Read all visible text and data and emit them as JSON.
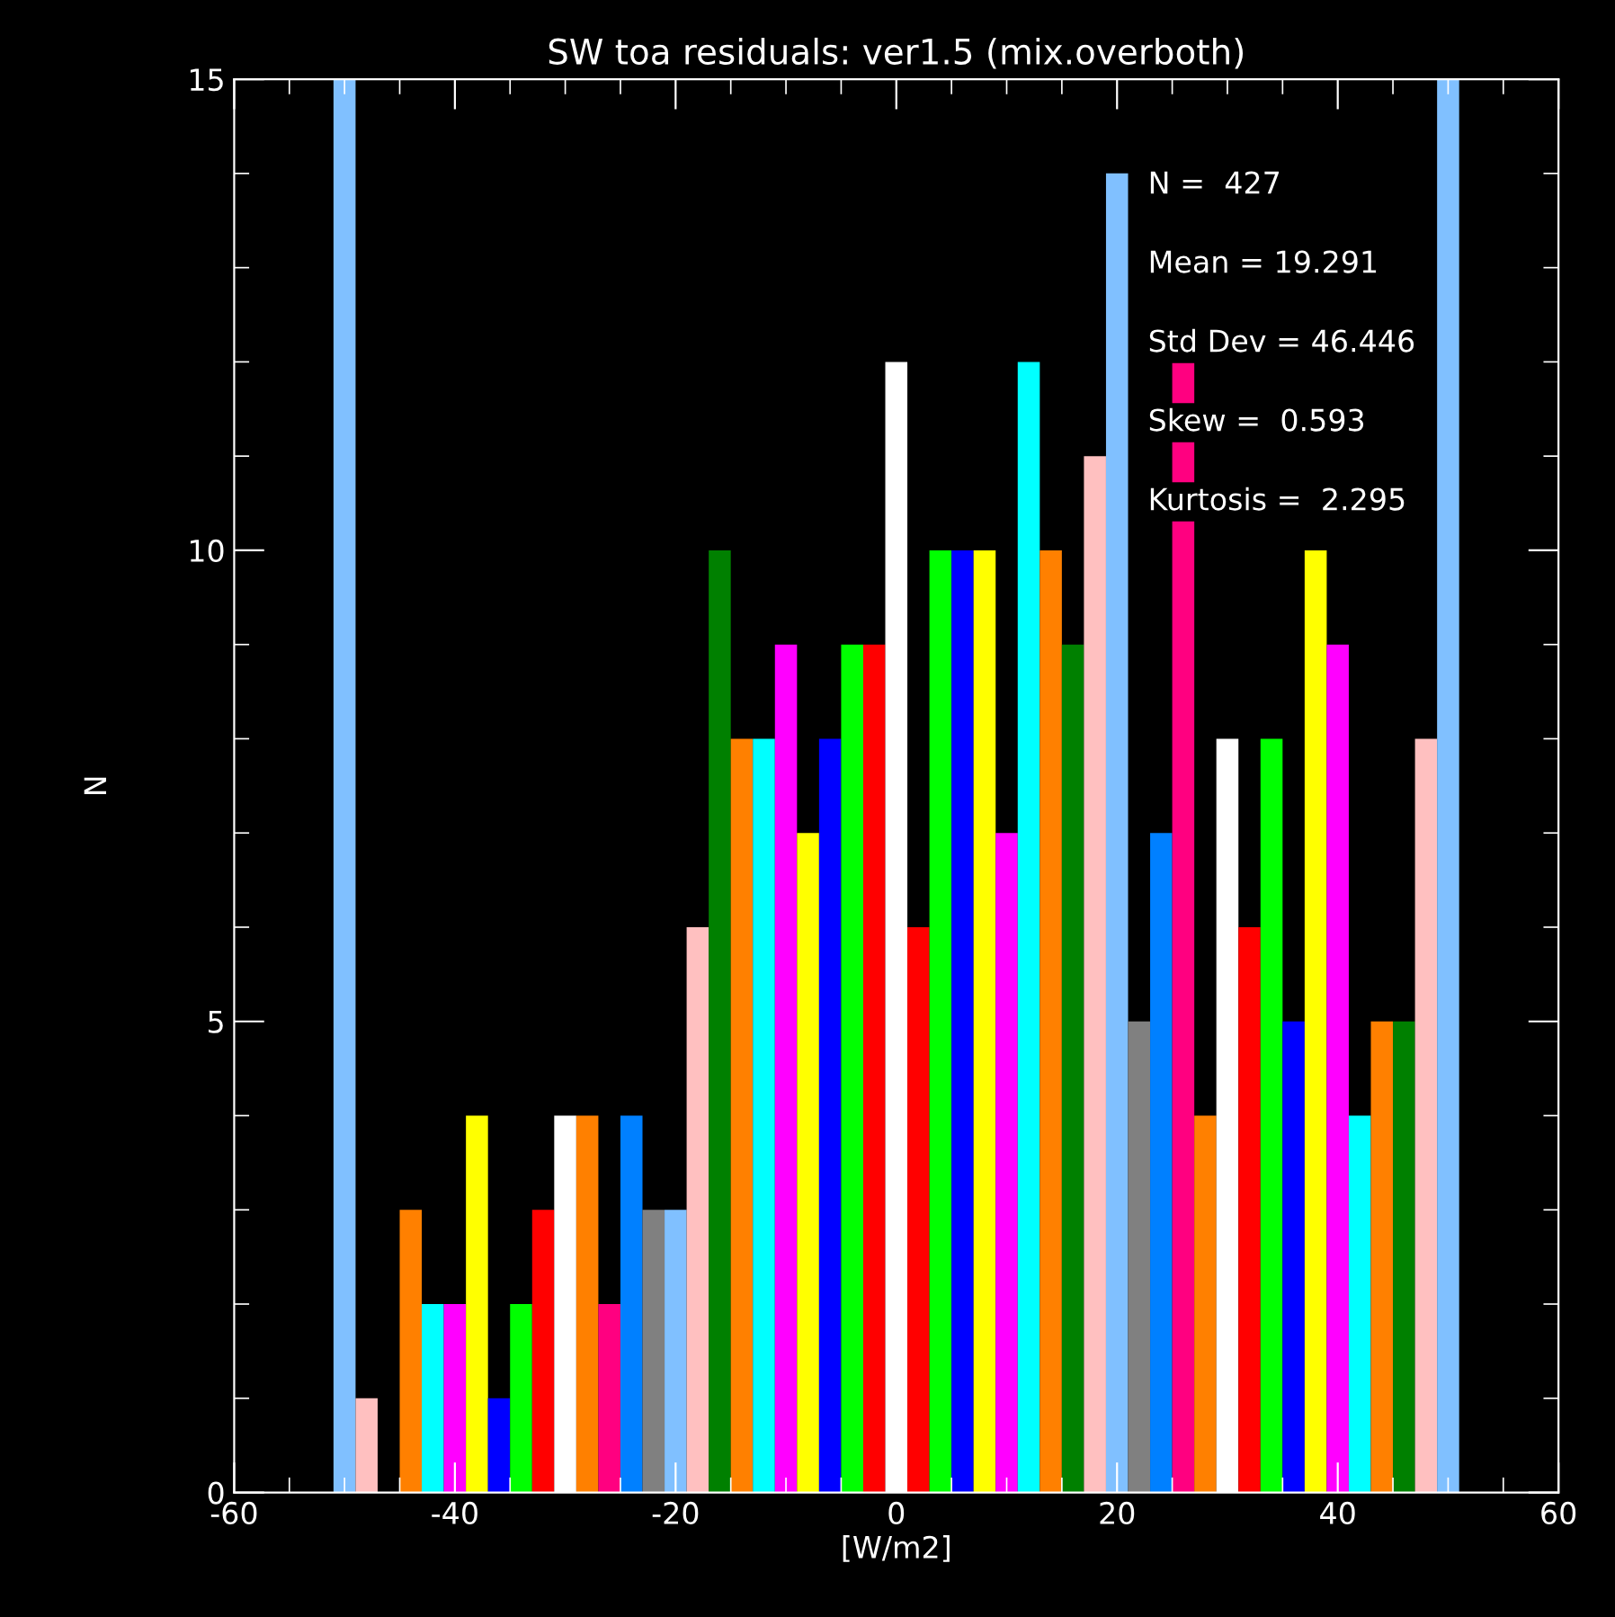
{
  "chart_data": {
    "type": "histogram",
    "title": "SW toa residuals: ver1.5 (mix.overboth)",
    "xlabel": "[W/m2]",
    "ylabel": "N",
    "bins": [
      -51,
      -49,
      -47,
      -45,
      -43,
      -41,
      -39,
      -37,
      -35,
      -33,
      -31,
      -29,
      -27,
      -25,
      -23,
      -21,
      -19,
      -17,
      -15,
      -13,
      -11,
      -9,
      -7,
      -5,
      -3,
      -1,
      1,
      3,
      5,
      7,
      9,
      11,
      13,
      15,
      17,
      19,
      21,
      23,
      25,
      27,
      29,
      31,
      33,
      35,
      37,
      39,
      41,
      43,
      45,
      47,
      49,
      51
    ],
    "values": [
      15,
      1,
      0,
      3,
      2,
      2,
      4,
      1,
      2,
      3,
      4,
      4,
      2,
      4,
      3,
      3,
      6,
      10,
      8,
      8,
      9,
      7,
      8,
      9,
      9,
      12,
      6,
      10,
      10,
      10,
      7,
      12,
      10,
      9,
      11,
      14,
      5,
      7,
      12,
      4,
      8,
      6,
      8,
      5,
      10,
      9,
      4,
      5,
      5,
      8,
      15
    ],
    "colors": [
      "#80c0ff",
      "#ffc0c0",
      "#008000",
      "#ff8000",
      "#00ffff",
      "#ff00ff",
      "#ffff00",
      "#0000ff",
      "#00ff00",
      "#ff0000",
      "#ffffff",
      "#ff8000",
      "#ff0080",
      "#0080ff",
      "#808080",
      "#80c0ff",
      "#ffc0c0",
      "#008000",
      "#ff8000",
      "#00ffff",
      "#ff00ff",
      "#ffff00",
      "#0000ff",
      "#00ff00",
      "#ff0000",
      "#ffffff",
      "#ff0000",
      "#00ff00",
      "#0000ff",
      "#ffff00",
      "#ff00ff",
      "#00ffff",
      "#ff8000",
      "#008000",
      "#ffc0c0",
      "#80c0ff",
      "#808080",
      "#0080ff",
      "#ff0080",
      "#ff8000",
      "#ffffff",
      "#ff0000",
      "#00ff00",
      "#0000ff",
      "#ffff00",
      "#ff00ff",
      "#00ffff",
      "#ff8000",
      "#008000",
      "#ffc0c0",
      "#80c0ff"
    ],
    "xlim": [
      -60,
      60
    ],
    "xticks": [
      -60,
      -40,
      -20,
      0,
      20,
      40,
      60
    ],
    "ylim": [
      0,
      15
    ],
    "yticks": [
      0,
      5,
      10,
      15
    ],
    "annotations": [
      "N =  427",
      "Mean = 19.291",
      "Std Dev = 46.446",
      "Skew =  0.593",
      "Kurtosis =  2.295"
    ],
    "grid": false,
    "legend": false
  }
}
